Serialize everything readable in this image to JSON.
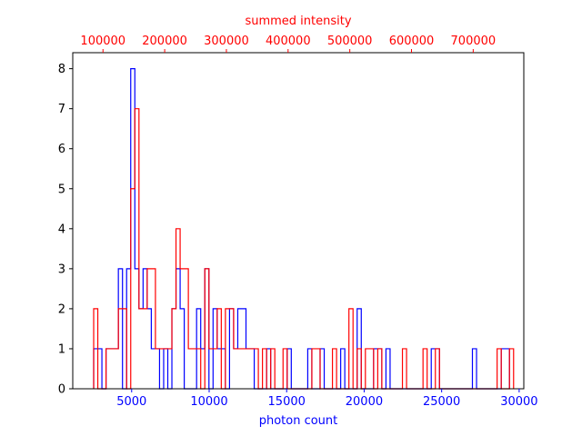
{
  "chart_data": {
    "type": "histogram",
    "xlabel": "photon count",
    "x2label": "summed intensity",
    "xlim": [
      1200,
      30300
    ],
    "x2lim": [
      51000,
      782000
    ],
    "ylim": [
      0,
      8.4
    ],
    "grid": false,
    "colors": {
      "bottom": "#0000ff",
      "top": "#ff0000",
      "frame": "#000000"
    },
    "x_ticks": [
      {
        "value": 5000,
        "label": "5000"
      },
      {
        "value": 10000,
        "label": "10000"
      },
      {
        "value": 15000,
        "label": "15000"
      },
      {
        "value": 20000,
        "label": "20000"
      },
      {
        "value": 25000,
        "label": "25000"
      },
      {
        "value": 30000,
        "label": "30000"
      }
    ],
    "x2_ticks": [
      {
        "value": 100000,
        "label": "100000"
      },
      {
        "value": 200000,
        "label": "200000"
      },
      {
        "value": 300000,
        "label": "300000"
      },
      {
        "value": 400000,
        "label": "400000"
      },
      {
        "value": 500000,
        "label": "500000"
      },
      {
        "value": 600000,
        "label": "600000"
      },
      {
        "value": 700000,
        "label": "700000"
      }
    ],
    "y_ticks": [
      {
        "value": 0,
        "label": "0"
      },
      {
        "value": 1,
        "label": "1"
      },
      {
        "value": 2,
        "label": "2"
      },
      {
        "value": 3,
        "label": "3"
      },
      {
        "value": 4,
        "label": "4"
      },
      {
        "value": 5,
        "label": "5"
      },
      {
        "value": 6,
        "label": "6"
      },
      {
        "value": 7,
        "label": "7"
      },
      {
        "value": 8,
        "label": "8"
      }
    ],
    "series": [
      {
        "axis": "bottom",
        "color": "#0000ff",
        "bin_start": 2550,
        "bin_width": 265.6,
        "counts": [
          1,
          1,
          0,
          1,
          1,
          1,
          3,
          0,
          3,
          8,
          3,
          2,
          3,
          2,
          1,
          1,
          0,
          1,
          0,
          2,
          3,
          2,
          0,
          0,
          0,
          2,
          1,
          3,
          0,
          2,
          1,
          1,
          0,
          2,
          1,
          2,
          2,
          1,
          1,
          0,
          0,
          0,
          1,
          0,
          0,
          0,
          0,
          1,
          0,
          0,
          0,
          0,
          1,
          0,
          0,
          1,
          0,
          0,
          0,
          0,
          1,
          0,
          0,
          0,
          2,
          0,
          0,
          0,
          1,
          1,
          0,
          1,
          0,
          0,
          0,
          0,
          0,
          0,
          0,
          0,
          0,
          0,
          1,
          1,
          0,
          0,
          0,
          0,
          0,
          0,
          0,
          0,
          1,
          0,
          0,
          0,
          0,
          0,
          0,
          1,
          1
        ]
      },
      {
        "axis": "top",
        "color": "#ff0000",
        "bin_start": 2550,
        "bin_width": 265.6,
        "counts": [
          2,
          0,
          0,
          1,
          1,
          1,
          2,
          2,
          0,
          5,
          7,
          2,
          2,
          3,
          3,
          1,
          1,
          1,
          1,
          2,
          4,
          3,
          3,
          1,
          1,
          1,
          0,
          3,
          1,
          1,
          2,
          0,
          2,
          2,
          1,
          1,
          1,
          1,
          1,
          1,
          0,
          1,
          0,
          1,
          0,
          0,
          1,
          0,
          0,
          0,
          0,
          0,
          0,
          1,
          1,
          0,
          0,
          0,
          1,
          0,
          0,
          0,
          2,
          0,
          1,
          0,
          1,
          1,
          0,
          1,
          0,
          0,
          0,
          0,
          0,
          1,
          0,
          0,
          0,
          0,
          1,
          0,
          0,
          1,
          0,
          0,
          0,
          0,
          0,
          0,
          0,
          0,
          0,
          0,
          0,
          0,
          0,
          0,
          1,
          0,
          0,
          1
        ]
      }
    ]
  }
}
